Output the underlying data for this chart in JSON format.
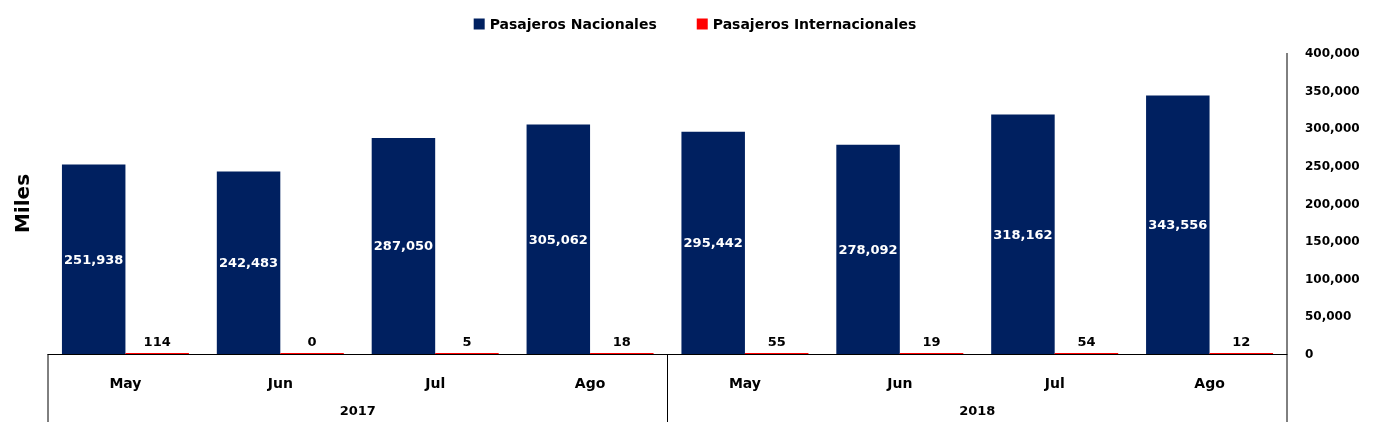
{
  "chart_data": {
    "type": "bar",
    "ylabel": "Miles",
    "categories": [
      "May",
      "Jun",
      "Jul",
      "Ago",
      "May",
      "Jun",
      "Jul",
      "Ago"
    ],
    "series": [
      {
        "name": "Pasajeros Nacionales",
        "color": "#002060",
        "values": [
          251938,
          242483,
          287050,
          305062,
          295442,
          278092,
          318162,
          343556
        ],
        "value_labels": [
          "251,938",
          "242,483",
          "287,050",
          "305,062",
          "295,442",
          "278,092",
          "318,162",
          "343,556"
        ]
      },
      {
        "name": "Pasajeros Internacionales",
        "color": "#ff0000",
        "values": [
          114,
          0,
          5,
          18,
          55,
          19,
          54,
          12
        ],
        "value_labels": [
          "114",
          "0",
          "5",
          "18",
          "55",
          "19",
          "54",
          "12"
        ]
      }
    ],
    "annotations": [
      "2017",
      "2018"
    ],
    "ylim": [
      0,
      400000
    ],
    "yticks": [
      0,
      {
        "value": 50000,
        "label": "50,000"
      },
      {
        "value": 100000,
        "label": "100,000"
      },
      {
        "value": 150000,
        "label": "150,000"
      },
      {
        "value": 200000,
        "label": "200,000"
      },
      {
        "value": 250000,
        "label": "250,000"
      },
      {
        "value": 300000,
        "label": "300,000"
      },
      {
        "value": 350000,
        "label": "350,000"
      },
      {
        "value": 400000,
        "label": "400,000"
      }
    ],
    "legend": "top",
    "grid": false
  }
}
